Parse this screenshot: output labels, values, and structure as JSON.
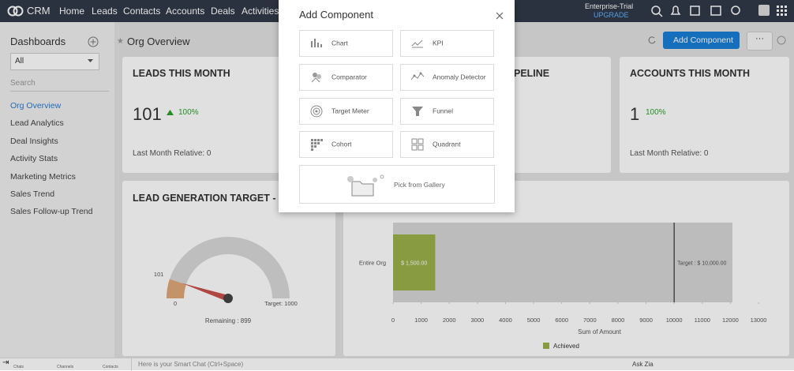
{
  "nav": {
    "brand": "CRM",
    "tabs": [
      "Home",
      "Leads",
      "Contacts",
      "Accounts",
      "Deals",
      "Activities"
    ],
    "plan": "Enterprise-Trial",
    "upgrade": "UPGRADE"
  },
  "sidebar": {
    "title": "Dashboards",
    "filter": "All",
    "search": "Search",
    "items": [
      "Org Overview",
      "Lead Analytics",
      "Deal Insights",
      "Activity Stats",
      "Marketing Metrics",
      "Sales Trend",
      "Sales Follow-up Trend"
    ]
  },
  "header": {
    "title": "Org Overview",
    "button": "Add Component"
  },
  "cards": [
    {
      "title": "LEADS THIS MONTH",
      "value": 101,
      "change": "100%",
      "footer": "Last Month Relative: 0"
    },
    {
      "title": "PELINE"
    },
    {
      "title": "ACCOUNTS THIS MONTH",
      "value": 1,
      "change": "100%",
      "footer": "Last Month Relative: 0"
    }
  ],
  "gauge_panel": {
    "title": "LEAD GENERATION TARGET - THI",
    "gauge": {
      "value": 101,
      "min": 0,
      "max": 1000,
      "target_label": "Target: 1000",
      "remaining_label": "Remaining : 899"
    }
  },
  "chart_data": {
    "type": "bar",
    "orientation": "horizontal",
    "categories": [
      "Entire Org"
    ],
    "series": [
      {
        "name": "Achieved",
        "color": "#9bb14b",
        "values": [
          1500
        ],
        "value_labels": [
          "$ 1,500.00"
        ]
      }
    ],
    "target": {
      "value": 10000,
      "label": "Target : $ 10,000.00"
    },
    "xlabel": "Sum of Amount",
    "xlim": [
      0,
      13000
    ],
    "xticks": [
      0,
      1000,
      2000,
      3000,
      4000,
      5000,
      6000,
      7000,
      8000,
      9000,
      10000,
      11000,
      12000,
      13000
    ]
  },
  "modal": {
    "title": "Add Component",
    "items": [
      "Chart",
      "KPI",
      "Comparator",
      "Anomaly Detector",
      "Target Meter",
      "Funnel",
      "Cohort",
      "Quadrant"
    ],
    "gallery": "Pick from Gallery"
  },
  "footer": {
    "tabs": [
      "Chats",
      "Channels",
      "Contacts"
    ],
    "chat_placeholder": "Here is your Smart Chat (Ctrl+Space)",
    "zia": "Ask Zia"
  }
}
